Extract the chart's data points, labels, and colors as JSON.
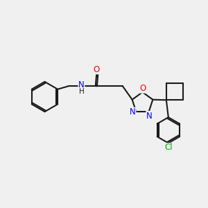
{
  "background_color": "#f0f0f0",
  "bond_color": "#1a1a1a",
  "bond_width": 1.5,
  "atom_colors": {
    "O": "#ff0000",
    "N": "#0000ff",
    "Cl": "#00aa00",
    "C": "#1a1a1a",
    "H": "#1a1a1a"
  },
  "figsize": [
    3.0,
    3.0
  ],
  "dpi": 100
}
